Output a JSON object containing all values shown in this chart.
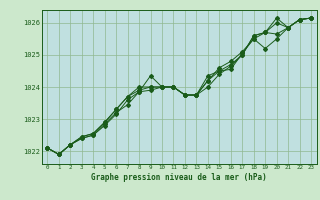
{
  "title": "Graphe pression niveau de la mer (hPa)",
  "bg_color": "#cce8cc",
  "plot_bg_color": "#c0e0e0",
  "line_color": "#1a5c1a",
  "grid_color": "#90b890",
  "ylim": [
    1021.6,
    1026.4
  ],
  "xlim": [
    -0.5,
    23.5
  ],
  "yticks": [
    1022,
    1023,
    1024,
    1025,
    1026
  ],
  "xticks": [
    0,
    1,
    2,
    3,
    4,
    5,
    6,
    7,
    8,
    9,
    10,
    11,
    12,
    13,
    14,
    15,
    16,
    17,
    18,
    19,
    20,
    21,
    22,
    23
  ],
  "series": [
    [
      1022.1,
      1021.9,
      1022.2,
      1022.4,
      1022.5,
      1022.8,
      1023.15,
      1023.6,
      1023.85,
      1023.9,
      1024.0,
      1024.0,
      1023.75,
      1023.75,
      1024.35,
      1024.5,
      1024.7,
      1025.0,
      1025.6,
      1025.7,
      1026.0,
      1025.85,
      1026.1,
      1026.15
    ],
    [
      1022.1,
      1021.9,
      1022.2,
      1022.4,
      1022.5,
      1022.85,
      1023.2,
      1023.45,
      1023.85,
      1024.35,
      1024.0,
      1024.0,
      1023.75,
      1023.75,
      1024.2,
      1024.6,
      1024.8,
      1025.1,
      1025.5,
      1025.2,
      1025.5,
      1025.85,
      1026.1,
      1026.15
    ],
    [
      1022.1,
      1021.9,
      1022.2,
      1022.45,
      1022.55,
      1022.9,
      1023.3,
      1023.7,
      1024.0,
      1024.0,
      1024.0,
      1024.0,
      1023.75,
      1023.75,
      1024.2,
      1024.5,
      1024.55,
      1025.05,
      1025.5,
      1025.7,
      1026.15,
      1025.85,
      1026.1,
      1026.15
    ],
    [
      1022.1,
      1021.9,
      1022.2,
      1022.45,
      1022.55,
      1022.9,
      1023.3,
      1023.7,
      1023.9,
      1024.0,
      1024.0,
      1024.0,
      1023.75,
      1023.75,
      1024.0,
      1024.4,
      1024.65,
      1025.0,
      1025.6,
      1025.7,
      1025.65,
      1025.85,
      1026.1,
      1026.15
    ]
  ],
  "figsize": [
    3.2,
    2.0
  ],
  "dpi": 100
}
